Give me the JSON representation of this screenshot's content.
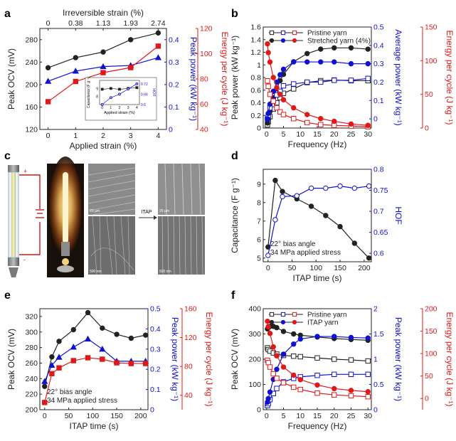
{
  "panel_labels": {
    "a": "a",
    "b": "b",
    "c": "c",
    "d": "d",
    "e": "e",
    "f": "f"
  },
  "panel_c": {
    "arrow_label": "ITAP",
    "plus_sign": "+",
    "minus_sign": "-",
    "scale_top_left": "20 µm",
    "scale_bottom_left": "500 nm",
    "scale_top_right": "20 µm",
    "scale_bottom_right": "500 nm"
  },
  "chart_data": [
    {
      "id": "a",
      "type": "line",
      "xlabel": "Applied strain (%)",
      "top_axis_label": "Irreversible strain (%)",
      "top_ticks": [
        {
          "at": 0,
          "label": "0"
        },
        {
          "at": 1,
          "label": "0.38"
        },
        {
          "at": 2,
          "label": "1.13"
        },
        {
          "at": 3,
          "label": "1.93"
        },
        {
          "at": 4,
          "label": "2.74"
        }
      ],
      "x_ticks": [
        0,
        1,
        2,
        3,
        4
      ],
      "xlim": [
        -0.3,
        4.3
      ],
      "axes": [
        {
          "side": "left",
          "label": "Peak OCV (mV)",
          "ylim": [
            120,
            300
          ],
          "ticks": [
            120,
            160,
            200,
            240,
            280
          ],
          "color": "#222222"
        },
        {
          "side": "right",
          "label": "Peak power (kW kg⁻¹)",
          "ylim": [
            0,
            0.45
          ],
          "ticks": [
            0.0,
            0.1,
            0.2,
            0.3,
            0.4
          ],
          "color": "#1010d0"
        },
        {
          "side": "right2",
          "label": "Energy per cycle (J kg⁻¹)",
          "ylim": [
            40,
            120
          ],
          "ticks": [
            40,
            60,
            80,
            100,
            120
          ],
          "color": "#e01818"
        }
      ],
      "series": [
        {
          "name": "Peak OCV",
          "axis": 0,
          "color": "#222222",
          "marker": "circle",
          "filled": true,
          "x": [
            0,
            1,
            2,
            3,
            4
          ],
          "y": [
            230,
            248,
            258,
            280,
            292
          ]
        },
        {
          "name": "Peak power",
          "axis": 1,
          "color": "#1010d0",
          "marker": "triangle",
          "filled": true,
          "x": [
            0,
            1,
            2,
            3,
            4
          ],
          "y": [
            0.215,
            0.26,
            0.28,
            0.285,
            0.32
          ]
        },
        {
          "name": "Energy per cycle",
          "axis": 2,
          "color": "#e01818",
          "marker": "square",
          "filled": true,
          "x": [
            0,
            1,
            2,
            3,
            4
          ],
          "y": [
            62,
            78,
            85,
            89,
            106
          ]
        }
      ],
      "inset": {
        "xlabel": "Applied strain (%)",
        "ylabel_left": "Capacitance (F g⁻¹)",
        "ylabel_right": "HOF",
        "x_ticks": [
          0,
          1,
          2,
          3,
          4
        ],
        "xlim": [
          -0.3,
          4.3
        ],
        "left_ylim": [
          7,
          10
        ],
        "left_ticks": [
          8,
          9
        ],
        "right_ylim": [
          0.6,
          0.74
        ],
        "right_ticks": [
          0.6,
          0.66,
          0.72
        ],
        "series": [
          {
            "name": "Capacitance",
            "side": "left",
            "color": "#222222",
            "marker": "square",
            "filled": true,
            "x": [
              0,
              1,
              2,
              3,
              4
            ],
            "y": [
              8.9,
              9.0,
              8.9,
              9.0,
              9.1
            ]
          },
          {
            "name": "HOF",
            "side": "right",
            "color": "#1010d0",
            "marker": "circle",
            "filled": false,
            "x": [
              0,
              1,
              2,
              3,
              4
            ],
            "y": [
              0.6,
              0.64,
              0.66,
              0.69,
              0.72
            ]
          }
        ]
      }
    },
    {
      "id": "b",
      "type": "line",
      "xlabel": "Frequency (Hz)",
      "x_ticks": [
        0,
        5,
        10,
        15,
        20,
        25,
        30
      ],
      "xlim": [
        -1,
        31
      ],
      "axes": [
        {
          "side": "left",
          "label": "Peak power (kW kg⁻¹)",
          "ylim": [
            0,
            1.6
          ],
          "ticks": [
            0.0,
            0.2,
            0.4,
            0.6,
            0.8,
            1.0,
            1.2,
            1.4,
            1.6
          ],
          "color": "#222222"
        },
        {
          "side": "right",
          "label": "Average power (kW kg⁻¹)",
          "ylim": [
            -0.05,
            0.5
          ],
          "ticks": [
            0.0,
            0.1,
            0.2,
            0.3,
            0.4,
            0.5
          ],
          "color": "#1010d0"
        },
        {
          "side": "right2",
          "label": "Energy per cycle (J kg⁻¹)",
          "ylim": [
            0,
            150
          ],
          "ticks": [
            0,
            50,
            100,
            150
          ],
          "color": "#e01818"
        }
      ],
      "legend": [
        {
          "label": "Pristine yarn",
          "filled": false
        },
        {
          "label": "Stretched yarn (4%)",
          "filled": true
        }
      ],
      "series": [
        {
          "name": "Pristine peak power",
          "axis": 0,
          "color": "#222222",
          "marker": "square",
          "filled": false,
          "x": [
            0.25,
            0.5,
            1,
            2,
            3,
            4,
            5,
            8,
            12,
            16,
            20,
            25,
            30
          ],
          "y": [
            0.05,
            0.1,
            0.18,
            0.3,
            0.4,
            0.48,
            0.55,
            0.62,
            0.72,
            0.75,
            0.76,
            0.75,
            0.75
          ]
        },
        {
          "name": "Stretched peak power",
          "axis": 0,
          "color": "#222222",
          "marker": "circle",
          "filled": true,
          "x": [
            0.25,
            0.5,
            1,
            2,
            3,
            4,
            5,
            8,
            12,
            16,
            20,
            25,
            30
          ],
          "y": [
            0.08,
            0.15,
            0.28,
            0.48,
            0.62,
            0.75,
            0.85,
            1.05,
            1.18,
            1.25,
            1.27,
            1.27,
            1.25
          ]
        },
        {
          "name": "Pristine average power",
          "axis": 1,
          "color": "#1010d0",
          "marker": "square",
          "filled": false,
          "x": [
            0.25,
            0.5,
            1,
            2,
            3,
            4,
            5,
            8,
            12,
            16,
            20,
            25,
            30
          ],
          "y": [
            0.0,
            0.02,
            0.06,
            0.1,
            0.13,
            0.15,
            0.18,
            0.19,
            0.2,
            0.2,
            0.21,
            0.21,
            0.22
          ]
        },
        {
          "name": "Stretched average power",
          "axis": 1,
          "color": "#1010d0",
          "marker": "circle",
          "filled": true,
          "x": [
            0.25,
            0.5,
            1,
            2,
            3,
            4,
            5,
            8,
            12,
            16,
            20,
            25,
            30
          ],
          "y": [
            0.0,
            0.03,
            0.08,
            0.15,
            0.2,
            0.24,
            0.27,
            0.31,
            0.31,
            0.31,
            0.31,
            0.3,
            0.3
          ]
        },
        {
          "name": "Pristine energy per cycle",
          "axis": 2,
          "color": "#e01818",
          "marker": "square",
          "filled": false,
          "x": [
            0.25,
            0.5,
            1,
            2,
            3,
            4,
            5,
            8,
            12,
            16,
            20,
            25,
            30
          ],
          "y": [
            70,
            62,
            50,
            40,
            30,
            24,
            20,
            14,
            8,
            5,
            4,
            3,
            2
          ]
        },
        {
          "name": "Stretched energy per cycle",
          "axis": 2,
          "color": "#e01818",
          "marker": "circle",
          "filled": true,
          "x": [
            0.25,
            0.5,
            1,
            2,
            3,
            4,
            5,
            8,
            12,
            16,
            20,
            25,
            30
          ],
          "y": [
            125,
            112,
            98,
            75,
            60,
            50,
            42,
            30,
            20,
            14,
            10,
            6,
            4
          ]
        }
      ]
    },
    {
      "id": "d",
      "type": "line",
      "xlabel": "ITAP time (s)",
      "x_ticks": [
        0,
        50,
        100,
        150,
        200
      ],
      "xlim": [
        -10,
        215
      ],
      "annotation": [
        "22° bias angle",
        "34 MPa applied stress"
      ],
      "axes": [
        {
          "side": "left",
          "label": "Capacitance (F g⁻¹)",
          "ylim": [
            4.8,
            9.8
          ],
          "ticks": [
            5,
            6,
            7,
            8,
            9
          ],
          "color": "#222222"
        },
        {
          "side": "right",
          "label": "HOF",
          "ylim": [
            0.58,
            0.8
          ],
          "ticks": [
            0.6,
            0.65,
            0.7,
            0.75,
            0.8
          ],
          "color": "#1010d0"
        }
      ],
      "series": [
        {
          "name": "Capacitance",
          "axis": 0,
          "color": "#222222",
          "marker": "circle",
          "filled": true,
          "x": [
            0,
            15,
            30,
            60,
            90,
            120,
            150,
            180,
            210
          ],
          "y": [
            5.6,
            9.2,
            8.6,
            8.2,
            7.8,
            7.3,
            6.7,
            5.8,
            5.0
          ]
        },
        {
          "name": "HOF",
          "axis": 1,
          "color": "#1010d0",
          "marker": "circle",
          "filled": false,
          "x": [
            0,
            15,
            30,
            60,
            90,
            120,
            150,
            180,
            210
          ],
          "y": [
            0.595,
            0.68,
            0.735,
            0.737,
            0.755,
            0.755,
            0.76,
            0.755,
            0.76
          ]
        }
      ]
    },
    {
      "id": "e",
      "type": "line",
      "xlabel": "ITAP time (s)",
      "x_ticks": [
        0,
        50,
        100,
        150,
        200
      ],
      "xlim": [
        -10,
        215
      ],
      "annotation": [
        "22° bias angle",
        "34 MPa applied stress"
      ],
      "axes": [
        {
          "side": "left",
          "label": "Peak OCV (mV)",
          "ylim": [
            200,
            330
          ],
          "ticks": [
            200,
            220,
            240,
            260,
            280,
            300,
            320
          ],
          "color": "#222222"
        },
        {
          "side": "right",
          "label": "Peak power (kW kg⁻¹)",
          "ylim": [
            0,
            0.5
          ],
          "ticks": [
            0.0,
            0.1,
            0.2,
            0.3,
            0.4,
            0.5
          ],
          "color": "#1010d0"
        },
        {
          "side": "right2",
          "label": "Energy per cycle (J kg⁻¹)",
          "ylim": [
            20,
            160
          ],
          "ticks": [
            40,
            80,
            120,
            160
          ],
          "color": "#e01818"
        }
      ],
      "series": [
        {
          "name": "Peak OCV",
          "axis": 0,
          "color": "#222222",
          "marker": "circle",
          "filled": true,
          "x": [
            0,
            15,
            30,
            60,
            90,
            120,
            150,
            180,
            210
          ],
          "y": [
            230,
            268,
            288,
            303,
            325,
            305,
            297,
            292,
            296
          ]
        },
        {
          "name": "Peak power",
          "axis": 1,
          "color": "#1010d0",
          "marker": "triangle",
          "filled": true,
          "x": [
            0,
            15,
            30,
            60,
            90,
            120,
            150,
            180,
            210
          ],
          "y": [
            0.14,
            0.22,
            0.26,
            0.31,
            0.35,
            0.3,
            0.24,
            0.24,
            0.24
          ]
        },
        {
          "name": "Energy per cycle",
          "axis": 2,
          "color": "#e01818",
          "marker": "square",
          "filled": true,
          "x": [
            0,
            15,
            30,
            60,
            90,
            120,
            150,
            180,
            210
          ],
          "y": [
            30,
            70,
            78,
            88,
            92,
            90,
            85,
            84,
            84
          ]
        }
      ]
    },
    {
      "id": "f",
      "type": "line",
      "xlabel": "Frequency (Hz)",
      "x_ticks": [
        0,
        5,
        10,
        15,
        20,
        25,
        30
      ],
      "xlim": [
        -1,
        31
      ],
      "axes": [
        {
          "side": "left",
          "label": "Peak OCV (mV)",
          "ylim": [
            0,
            400
          ],
          "ticks": [
            0,
            100,
            200,
            300,
            400
          ],
          "color": "#222222"
        },
        {
          "side": "right",
          "label": "Peak power (kW kg⁻¹)",
          "ylim": [
            0,
            2.0
          ],
          "ticks": [
            0.0,
            0.5,
            1.0,
            1.5,
            2.0
          ],
          "color": "#1010d0"
        },
        {
          "side": "right2",
          "label": "Energy per cycle (J kg⁻¹)",
          "ylim": [
            -25,
            200
          ],
          "ticks": [
            0,
            50,
            100,
            150,
            200
          ],
          "color": "#e01818"
        }
      ],
      "legend": [
        {
          "label": "Pristine yarn",
          "filled": false
        },
        {
          "label": "ITAP yarn",
          "filled": true
        }
      ],
      "series": [
        {
          "name": "Pristine peak OCV",
          "axis": 0,
          "color": "#222222",
          "marker": "square",
          "filled": false,
          "x": [
            0.25,
            0.5,
            1,
            2,
            3,
            5,
            8,
            10,
            15,
            20,
            25,
            30
          ],
          "y": [
            245,
            238,
            232,
            225,
            220,
            215,
            212,
            210,
            205,
            200,
            197,
            193
          ]
        },
        {
          "name": "ITAP peak OCV",
          "axis": 0,
          "color": "#222222",
          "marker": "circle",
          "filled": true,
          "x": [
            0.25,
            0.5,
            1,
            2,
            3,
            5,
            8,
            10,
            15,
            20,
            25,
            30
          ],
          "y": [
            320,
            325,
            330,
            330,
            325,
            310,
            300,
            295,
            288,
            282,
            278,
            275
          ]
        },
        {
          "name": "Pristine peak power",
          "axis": 1,
          "color": "#1010d0",
          "marker": "square",
          "filled": false,
          "x": [
            0.25,
            0.5,
            1,
            2,
            3,
            5,
            8,
            10,
            15,
            20,
            25,
            30
          ],
          "y": [
            0.08,
            0.12,
            0.2,
            0.32,
            0.42,
            0.55,
            0.62,
            0.65,
            0.68,
            0.7,
            0.7,
            0.7
          ]
        },
        {
          "name": "ITAP peak power",
          "axis": 1,
          "color": "#1010d0",
          "marker": "circle",
          "filled": true,
          "x": [
            0.25,
            0.5,
            1,
            2,
            3,
            5,
            8,
            10,
            15,
            20,
            25,
            30
          ],
          "y": [
            0.15,
            0.22,
            0.35,
            0.6,
            0.8,
            1.1,
            1.3,
            1.4,
            1.45,
            1.45,
            1.43,
            1.42
          ]
        },
        {
          "name": "Pristine energy per cycle",
          "axis": 2,
          "color": "#e01818",
          "marker": "square",
          "filled": false,
          "x": [
            0.25,
            0.5,
            1,
            2,
            3,
            5,
            8,
            10,
            15,
            20,
            25,
            30
          ],
          "y": [
            85,
            80,
            70,
            55,
            45,
            35,
            25,
            20,
            12,
            8,
            6,
            4
          ]
        },
        {
          "name": "ITAP energy per cycle",
          "axis": 2,
          "color": "#e01818",
          "marker": "circle",
          "filled": true,
          "x": [
            0.25,
            0.5,
            1,
            2,
            3,
            5,
            8,
            10,
            15,
            20,
            25,
            30
          ],
          "y": [
            172,
            160,
            145,
            115,
            95,
            70,
            52,
            42,
            30,
            22,
            18,
            15
          ]
        }
      ]
    }
  ]
}
